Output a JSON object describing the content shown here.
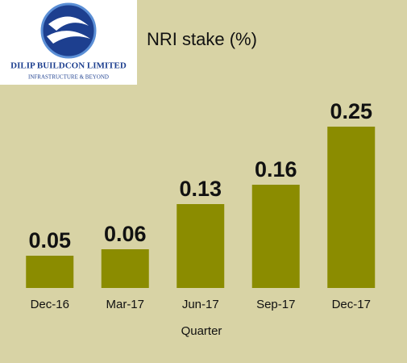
{
  "logo": {
    "name": "DILIP BUILDCON LIMITED",
    "tagline": "INFRASTRUCTURE & BEYOND"
  },
  "chart_data": {
    "type": "bar",
    "title": "NRI stake (%)",
    "x_label": "Quarter",
    "categories": [
      "Dec-16",
      "Mar-17",
      "Jun-17",
      "Sep-17",
      "Dec-17"
    ],
    "values": [
      0.05,
      0.06,
      0.13,
      0.16,
      0.25
    ],
    "color": "#8b8c00"
  }
}
